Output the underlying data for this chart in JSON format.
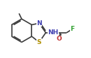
{
  "background_color": "#ffffff",
  "bond_color": "#3a3a3a",
  "bond_width": 1.2,
  "atom_colors": {
    "N": "#4040b0",
    "S": "#b09000",
    "O": "#c03030",
    "F": "#30a030",
    "C": "#3a3a3a"
  },
  "font_size_atoms": 6.5,
  "figsize": [
    1.3,
    0.83
  ],
  "dpi": 100,
  "xlim": [
    0.0,
    8.5
  ],
  "ylim": [
    0.5,
    5.8
  ]
}
